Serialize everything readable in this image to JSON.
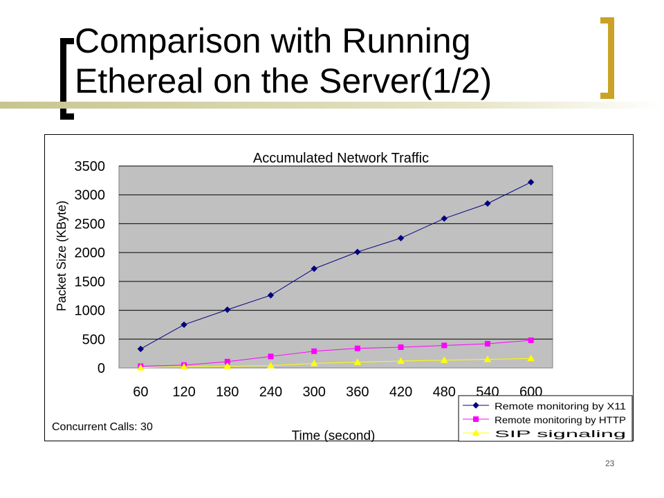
{
  "slide": {
    "title_line1": "Comparison with Running",
    "title_line2": "Ethereal on the Server(1/2)",
    "page_number": "23"
  },
  "chart_data": {
    "type": "line",
    "title": "Accumulated Network Traffic",
    "xlabel": "Time (second)",
    "ylabel": "Packet Size (KByte)",
    "annotation": "Concurrent Calls: 30",
    "x": [
      60,
      120,
      180,
      240,
      300,
      360,
      420,
      480,
      540,
      600
    ],
    "ylim": [
      0,
      3500
    ],
    "yticks": [
      0,
      500,
      1000,
      1500,
      2000,
      2500,
      3000,
      3500
    ],
    "grid": "horizontal",
    "plot_background": "#c0c0c0",
    "legend": {
      "placement": "bottom-right"
    },
    "series": [
      {
        "name": "Remote monitoring by X11",
        "color": "#000080",
        "marker": "diamond",
        "values": [
          330,
          750,
          1010,
          1260,
          1720,
          2010,
          2250,
          2590,
          2850,
          3220
        ]
      },
      {
        "name": "Remote monitoring by HTTP",
        "color": "#ff00ff",
        "marker": "square",
        "values": [
          30,
          50,
          110,
          200,
          290,
          340,
          360,
          390,
          420,
          480
        ]
      },
      {
        "name": "SIP signaling",
        "color": "#ffff00",
        "marker": "triangle",
        "values": [
          5,
          20,
          30,
          40,
          80,
          100,
          120,
          135,
          150,
          165
        ]
      }
    ]
  }
}
